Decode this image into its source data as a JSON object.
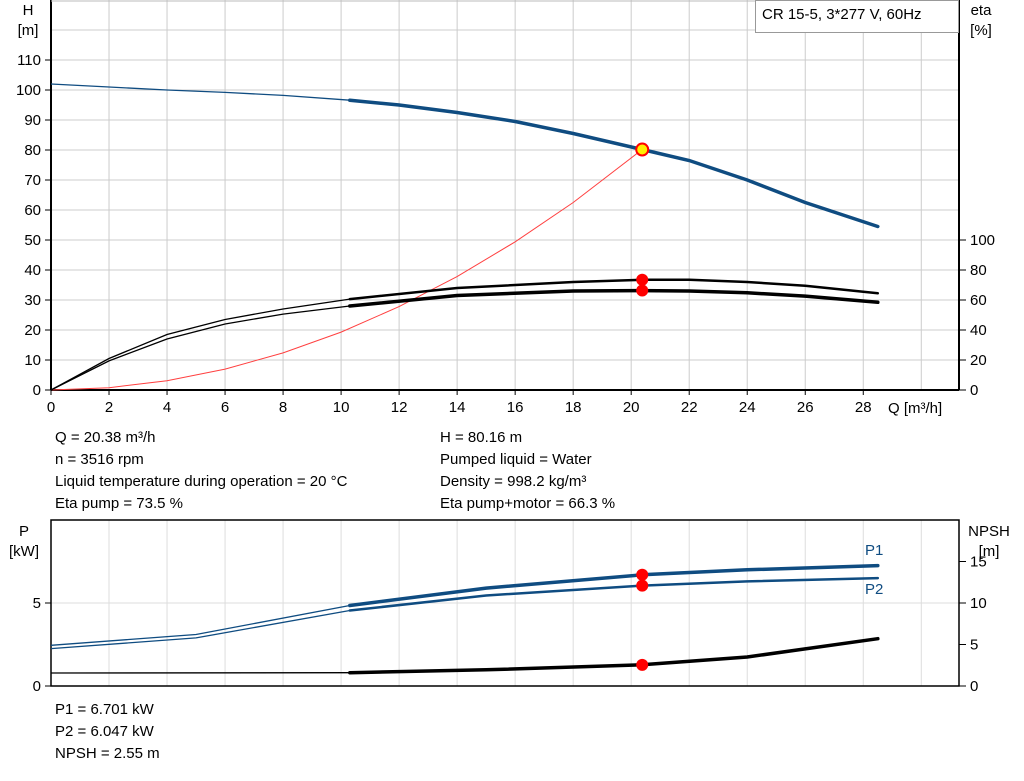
{
  "chart_data": [
    {
      "type": "line",
      "title_box": "CR 15-5, 3*277 V, 60Hz",
      "xlabel": "Q [m³/h]",
      "ylabel_left": [
        "H",
        "[m]"
      ],
      "ylabel_right": [
        "eta",
        "[%]"
      ],
      "xlim": [
        0,
        31.3
      ],
      "ylim_left": [
        0,
        130
      ],
      "ylim_right_ticks": [
        0,
        100
      ],
      "x_ticks": [
        "0",
        "2",
        "4",
        "6",
        "8",
        "10",
        "12",
        "14",
        "16",
        "18",
        "20",
        "22",
        "24",
        "26",
        "28"
      ],
      "y_left_ticks": [
        "0",
        "10",
        "20",
        "30",
        "40",
        "50",
        "60",
        "70",
        "80",
        "90",
        "100",
        "110"
      ],
      "y_right_ticks": [
        "0",
        "20",
        "40",
        "60",
        "80",
        "100"
      ],
      "grid": true,
      "series": [
        {
          "id": "H",
          "axis": "left",
          "color": "#0f4c81",
          "x": [
            0,
            2,
            4,
            6,
            8,
            10.3,
            12,
            14,
            16,
            18,
            20.38,
            22,
            24,
            26,
            28.5
          ],
          "y": [
            102,
            101,
            100,
            99.2,
            98.2,
            96.6,
            95,
            92.5,
            89.5,
            85.5,
            80.16,
            76.5,
            70,
            62.5,
            54.5
          ]
        },
        {
          "id": "eta-pump",
          "axis": "right",
          "color": "#000000",
          "x": [
            0,
            2,
            4,
            6,
            8,
            10.3,
            14,
            18,
            20.38,
            22,
            24,
            26,
            28.5
          ],
          "y": [
            0,
            21,
            37,
            47,
            54,
            60.6,
            68,
            72,
            73.5,
            73.5,
            72,
            69.5,
            64.5
          ]
        },
        {
          "id": "eta-pump-motor",
          "axis": "right",
          "color": "#000000",
          "x": [
            0,
            2,
            4,
            6,
            8,
            10.3,
            14,
            18,
            20.38,
            22,
            24,
            26,
            28.5
          ],
          "y": [
            0,
            19.4,
            34,
            44,
            50.6,
            56,
            63,
            66,
            66.3,
            66,
            64.8,
            62.6,
            58.5
          ]
        },
        {
          "id": "system-curve",
          "axis": "left",
          "color": "#ff4040",
          "x": [
            0,
            2,
            4,
            6,
            8,
            10,
            12,
            14,
            16,
            18,
            20.38
          ],
          "y": [
            0,
            0.77,
            3.09,
            6.95,
            12.35,
            19.3,
            27.8,
            37.8,
            49.4,
            62.5,
            80.16
          ]
        }
      ],
      "duty_point": {
        "x": 20.38,
        "y": 80.16,
        "color": "#ffee00"
      },
      "markers": [
        {
          "x": 20.38,
          "eta": 73.5
        },
        {
          "x": 20.38,
          "eta": 66.3
        }
      ]
    },
    {
      "type": "line",
      "xlim": [
        0,
        31.3
      ],
      "ylabel_left": [
        "P",
        "[kW]"
      ],
      "ylabel_right": [
        "NPSH",
        "[m]"
      ],
      "ylim_left": [
        0,
        10
      ],
      "ylim_right": [
        0,
        20
      ],
      "y_left_ticks": [
        "0",
        "5"
      ],
      "y_right_ticks": [
        "0",
        "5",
        "10",
        "15"
      ],
      "grid": true,
      "series": [
        {
          "id": "P1",
          "name": "P1",
          "axis": "left",
          "color": "#0f4c81",
          "x": [
            0,
            5,
            10.3,
            15,
            20.38,
            24,
            28.5
          ],
          "y": [
            2.45,
            3.1,
            4.85,
            5.9,
            6.701,
            7.0,
            7.25
          ]
        },
        {
          "id": "P2",
          "name": "P2",
          "axis": "left",
          "color": "#0f4c81",
          "x": [
            0,
            5,
            10.3,
            15,
            20.38,
            24,
            28.5
          ],
          "y": [
            2.25,
            2.9,
            4.55,
            5.45,
            6.047,
            6.3,
            6.5
          ]
        },
        {
          "id": "NPSH",
          "axis": "right",
          "color": "#000000",
          "x": [
            0,
            10.3,
            15,
            20.38,
            24,
            28.5
          ],
          "y": [
            1.57,
            1.6,
            1.95,
            2.55,
            3.5,
            5.7
          ]
        }
      ],
      "markers": [
        {
          "x": 20.38,
          "P": 6.701
        },
        {
          "x": 20.38,
          "P": 6.047
        },
        {
          "x": 20.38,
          "NPSH": 2.55
        }
      ]
    }
  ],
  "info_left": [
    "Q = 20.38 m³/h",
    "n = 3516 rpm",
    "Liquid temperature during operation = 20 °C",
    "Eta pump = 73.5 %"
  ],
  "info_right": [
    "H = 80.16 m",
    "Pumped liquid = Water",
    "Density = 998.2 kg/m³",
    "Eta pump+motor = 66.3 %"
  ],
  "info_bottom": [
    "P1 = 6.701 kW",
    "P2 = 6.047 kW",
    "NPSH = 2.55 m"
  ],
  "colors": {
    "grid": "#cccccc",
    "marker": "#ff0000",
    "curve_blue": "#0f4c81"
  }
}
